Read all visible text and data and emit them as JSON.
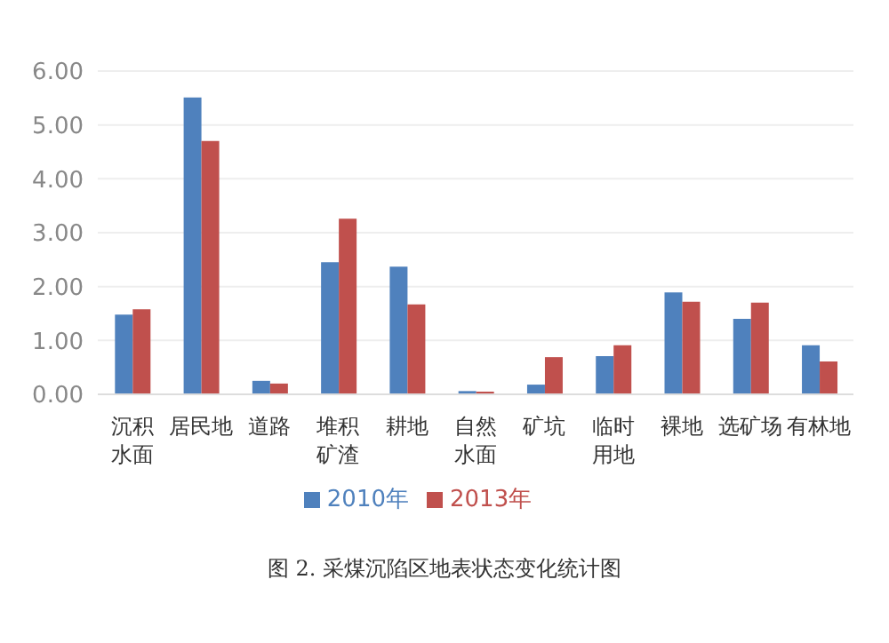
{
  "chart_data": {
    "type": "bar",
    "categories": [
      "沉积水面",
      "居民地",
      "道路",
      "堆积矿渣",
      "耕地",
      "自然水面",
      "矿坑",
      "临时用地",
      "裸地",
      "选矿场",
      "有林地"
    ],
    "series": [
      {
        "name": "2010年",
        "color": "#4f81bd",
        "values": [
          1.48,
          5.51,
          0.25,
          2.45,
          2.37,
          0.06,
          0.18,
          0.71,
          1.89,
          1.4,
          0.91
        ]
      },
      {
        "name": "2013年",
        "color": "#c0504d",
        "values": [
          1.58,
          4.7,
          0.2,
          3.26,
          1.67,
          0.05,
          0.69,
          0.91,
          1.72,
          1.7,
          0.61
        ]
      }
    ],
    "ylim": [
      0,
      6
    ],
    "yticks": [
      {
        "value": 0,
        "label": "0.00"
      },
      {
        "value": 1,
        "label": "1.00"
      },
      {
        "value": 2,
        "label": "2.00"
      },
      {
        "value": 3,
        "label": "3.00"
      },
      {
        "value": 4,
        "label": "4.00"
      },
      {
        "value": 5,
        "label": "5.00"
      },
      {
        "value": 6,
        "label": "6.00"
      }
    ],
    "grid": "y",
    "legend": "bottom",
    "annotations": [
      "图 2.  采煤沉陷区地表状态变化统计图"
    ]
  }
}
